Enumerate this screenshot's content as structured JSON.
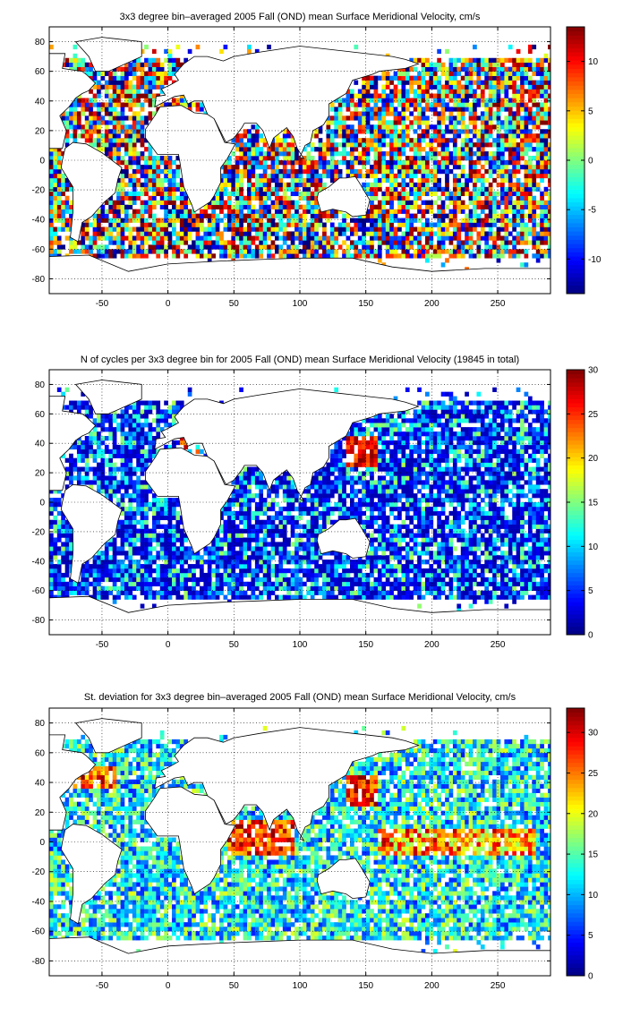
{
  "figure": {
    "background": "#ffffff"
  },
  "colormap": "jet",
  "chart_data": [
    {
      "type": "heatmap",
      "title": "3x3 degree bin–averaged 2005 Fall (OND) mean Surface Meridional Velocity, cm/s",
      "xlabel": "",
      "ylabel": "",
      "xlim": [
        -90,
        290
      ],
      "ylim": [
        -90,
        90
      ],
      "xticks": [
        -50,
        0,
        50,
        100,
        150,
        200,
        250
      ],
      "yticks": [
        -80,
        -60,
        -40,
        -20,
        0,
        20,
        40,
        60,
        80
      ],
      "grid": true,
      "bin_size_deg": 3,
      "colorbar": {
        "min": -13.5,
        "max": 13.5,
        "ticks": [
          -10,
          -5,
          0,
          5,
          10
        ]
      },
      "field": "signed",
      "seed": 11
    },
    {
      "type": "heatmap",
      "title": "N of cycles per 3x3 degree bin for 2005 Fall (OND) mean Surface Meridional Velocity (19845 in total)",
      "xlabel": "",
      "ylabel": "",
      "xlim": [
        -90,
        290
      ],
      "ylim": [
        -90,
        90
      ],
      "xticks": [
        -50,
        0,
        50,
        100,
        150,
        200,
        250
      ],
      "yticks": [
        -80,
        -60,
        -40,
        -20,
        0,
        20,
        40,
        60,
        80
      ],
      "grid": true,
      "bin_size_deg": 3,
      "colorbar": {
        "min": 0,
        "max": 30,
        "ticks": [
          0,
          5,
          10,
          15,
          20,
          25,
          30
        ]
      },
      "field": "count",
      "seed": 23
    },
    {
      "type": "heatmap",
      "title": "St. deviation for 3x3 degree bin–averaged 2005 Fall (OND) mean Surface Meridional Velocity, cm/s",
      "xlabel": "",
      "ylabel": "",
      "xlim": [
        -90,
        290
      ],
      "ylim": [
        -90,
        90
      ],
      "xticks": [
        -50,
        0,
        50,
        100,
        150,
        200,
        250
      ],
      "yticks": [
        -80,
        -60,
        -40,
        -20,
        0,
        20,
        40,
        60,
        80
      ],
      "grid": true,
      "bin_size_deg": 3,
      "colorbar": {
        "min": 0,
        "max": 33,
        "ticks": [
          0,
          5,
          10,
          15,
          20,
          25,
          30
        ]
      },
      "field": "std",
      "seed": 37
    }
  ],
  "land": [
    [
      [
        -80,
        8
      ],
      [
        -77,
        20
      ],
      [
        -82,
        30
      ],
      [
        -75,
        36
      ],
      [
        -70,
        42
      ],
      [
        -65,
        45
      ],
      [
        -60,
        47
      ],
      [
        -55,
        52
      ],
      [
        -62,
        58
      ],
      [
        -65,
        60
      ],
      [
        -80,
        62
      ],
      [
        -78,
        72
      ],
      [
        -90,
        72
      ],
      [
        -90,
        8
      ]
    ],
    [
      [
        -78,
        8
      ],
      [
        -72,
        12
      ],
      [
        -62,
        11
      ],
      [
        -50,
        5
      ],
      [
        -35,
        -5
      ],
      [
        -38,
        -13
      ],
      [
        -40,
        -22
      ],
      [
        -48,
        -28
      ],
      [
        -58,
        -38
      ],
      [
        -65,
        -42
      ],
      [
        -68,
        -55
      ],
      [
        -74,
        -52
      ],
      [
        -72,
        -35
      ],
      [
        -72,
        -18
      ],
      [
        -81,
        -5
      ],
      [
        -80,
        0
      ],
      [
        -78,
        8
      ]
    ],
    [
      [
        -55,
        60
      ],
      [
        -45,
        60
      ],
      [
        -20,
        70
      ],
      [
        -20,
        80
      ],
      [
        -50,
        83
      ],
      [
        -70,
        80
      ],
      [
        -60,
        70
      ],
      [
        -55,
        60
      ]
    ],
    [
      [
        -17,
        15
      ],
      [
        -17,
        21
      ],
      [
        -10,
        30
      ],
      [
        -6,
        36
      ],
      [
        10,
        37
      ],
      [
        20,
        32
      ],
      [
        32,
        31
      ],
      [
        35,
        28
      ],
      [
        43,
        12
      ],
      [
        51,
        11
      ],
      [
        45,
        1
      ],
      [
        40,
        -5
      ],
      [
        40,
        -15
      ],
      [
        35,
        -24
      ],
      [
        32,
        -28
      ],
      [
        20,
        -35
      ],
      [
        18,
        -30
      ],
      [
        12,
        -18
      ],
      [
        9,
        -1
      ],
      [
        8,
        4
      ],
      [
        -8,
        4
      ],
      [
        -17,
        15
      ]
    ],
    [
      [
        -10,
        36
      ],
      [
        -9,
        43
      ],
      [
        -2,
        44
      ],
      [
        -5,
        48
      ],
      [
        2,
        51
      ],
      [
        8,
        54
      ],
      [
        5,
        58
      ],
      [
        12,
        65
      ],
      [
        20,
        70
      ],
      [
        30,
        70
      ],
      [
        42,
        67
      ],
      [
        50,
        70
      ],
      [
        70,
        73
      ],
      [
        100,
        77
      ],
      [
        140,
        73
      ],
      [
        170,
        70
      ],
      [
        180,
        68
      ],
      [
        190,
        65
      ],
      [
        180,
        62
      ],
      [
        160,
        60
      ],
      [
        155,
        58
      ],
      [
        140,
        54
      ],
      [
        135,
        45
      ],
      [
        122,
        38
      ],
      [
        122,
        30
      ],
      [
        118,
        24
      ],
      [
        110,
        20
      ],
      [
        108,
        12
      ],
      [
        104,
        10
      ],
      [
        100,
        2
      ],
      [
        103,
        1
      ],
      [
        98,
        8
      ],
      [
        95,
        16
      ],
      [
        90,
        22
      ],
      [
        80,
        15
      ],
      [
        77,
        8
      ],
      [
        72,
        20
      ],
      [
        67,
        25
      ],
      [
        58,
        25
      ],
      [
        56,
        22
      ],
      [
        50,
        15
      ],
      [
        44,
        12
      ],
      [
        35,
        28
      ],
      [
        30,
        31
      ],
      [
        26,
        40
      ],
      [
        20,
        40
      ],
      [
        15,
        38
      ],
      [
        12,
        44
      ],
      [
        5,
        43
      ],
      [
        -10,
        36
      ]
    ],
    [
      [
        114,
        -22
      ],
      [
        113,
        -26
      ],
      [
        116,
        -35
      ],
      [
        125,
        -33
      ],
      [
        135,
        -35
      ],
      [
        140,
        -38
      ],
      [
        150,
        -37
      ],
      [
        153,
        -27
      ],
      [
        145,
        -15
      ],
      [
        142,
        -11
      ],
      [
        135,
        -12
      ],
      [
        130,
        -12
      ],
      [
        122,
        -18
      ],
      [
        114,
        -22
      ]
    ],
    [
      [
        -90,
        -65
      ],
      [
        -60,
        -64
      ],
      [
        -30,
        -75
      ],
      [
        0,
        -70
      ],
      [
        40,
        -68
      ],
      [
        70,
        -67
      ],
      [
        100,
        -66
      ],
      [
        140,
        -66
      ],
      [
        170,
        -72
      ],
      [
        200,
        -75
      ],
      [
        240,
        -73
      ],
      [
        290,
        -73
      ],
      [
        290,
        -90
      ],
      [
        -90,
        -90
      ]
    ]
  ]
}
